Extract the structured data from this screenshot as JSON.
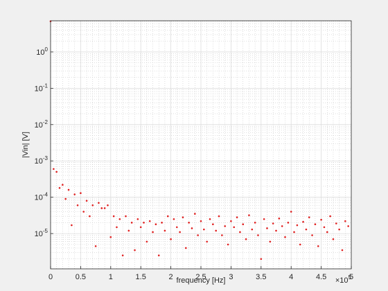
{
  "chart_data": {
    "type": "scatter",
    "xlabel": "frequency [Hz]",
    "ylabel": "|Vin|  [V]",
    "x_exponent_label": "×10^5",
    "color": "#e02020",
    "log_y": true,
    "grid": true,
    "minor_grid": true,
    "xlim": [
      0,
      500000
    ],
    "ylim": [
      1.07e-06,
      7.2
    ],
    "xticks": [
      0,
      {
        "value": 50000,
        "label": "0.5"
      },
      {
        "value": 100000,
        "label": "1"
      },
      {
        "value": 150000,
        "label": "1.5"
      },
      {
        "value": 200000,
        "label": "2"
      },
      {
        "value": 250000,
        "label": "2.5"
      },
      {
        "value": 300000,
        "label": "3"
      },
      {
        "value": 350000,
        "label": "3.5"
      },
      {
        "value": 400000,
        "label": "4"
      },
      {
        "value": 450000,
        "label": "4.5"
      },
      {
        "value": 500000,
        "label": "5"
      }
    ],
    "yticks": [
      {
        "value": 1e-05,
        "label": "10^-5"
      },
      {
        "value": 0.0001,
        "label": "10^-4"
      },
      {
        "value": 0.001,
        "label": "10^-3"
      },
      {
        "value": 0.01,
        "label": "10^-2"
      },
      {
        "value": 0.1,
        "label": "10^-1"
      },
      {
        "value": 1,
        "label": "10^0"
      }
    ],
    "x": [
      0,
      5000,
      10000,
      15000,
      20000,
      25000,
      30000,
      35000,
      40000,
      45000,
      50000,
      55000,
      60000,
      65000,
      70000,
      75000,
      80000,
      85000,
      90000,
      95000,
      100000,
      105000,
      110000,
      115000,
      120000,
      125000,
      130000,
      135000,
      140000,
      145000,
      150000,
      155000,
      160000,
      165000,
      170000,
      175000,
      180000,
      185000,
      190000,
      195000,
      200000,
      205000,
      210000,
      215000,
      220000,
      225000,
      230000,
      235000,
      240000,
      245000,
      250000,
      255000,
      260000,
      265000,
      270000,
      275000,
      280000,
      285000,
      290000,
      295000,
      300000,
      305000,
      310000,
      315000,
      320000,
      325000,
      330000,
      335000,
      340000,
      345000,
      350000,
      355000,
      360000,
      365000,
      370000,
      375000,
      380000,
      385000,
      390000,
      395000,
      400000,
      405000,
      410000,
      415000,
      420000,
      425000,
      430000,
      435000,
      440000,
      445000,
      450000,
      455000,
      460000,
      465000,
      470000,
      475000,
      480000,
      485000,
      490000,
      495000
    ],
    "values": [
      7,
      0.0006,
      0.0005,
      0.00018,
      0.00022,
      9e-05,
      0.00016,
      1.7e-05,
      0.00012,
      6e-05,
      0.00013,
      4e-05,
      8e-05,
      3e-05,
      6e-05,
      4.5e-06,
      7e-05,
      5e-05,
      5e-05,
      6e-05,
      8e-06,
      3e-05,
      1.5e-05,
      2.5e-05,
      2.5e-06,
      3e-05,
      1.2e-05,
      2e-05,
      3.5e-06,
      2.5e-05,
      1.5e-05,
      2e-05,
      6e-06,
      2.2e-05,
      1.1e-05,
      1.8e-05,
      2.5e-06,
      2e-05,
      1.2e-05,
      3e-05,
      7e-06,
      2.5e-05,
      1.5e-05,
      1.1e-05,
      2.8e-05,
      4e-06,
      2e-05,
      1.4e-05,
      3.5e-05,
      9e-06,
      2.2e-05,
      1.3e-05,
      6e-06,
      2.5e-05,
      1.8e-05,
      1.2e-05,
      3e-05,
      9e-06,
      1.6e-05,
      5e-06,
      2.2e-05,
      1.5e-05,
      2.8e-05,
      1.1e-05,
      1.8e-05,
      7e-06,
      3.2e-05,
      1.3e-05,
      2e-05,
      9e-06,
      2e-06,
      2.5e-05,
      1.4e-05,
      6e-06,
      1.9e-05,
      1.2e-05,
      2.6e-05,
      1.6e-05,
      8e-06,
      2e-05,
      4e-05,
      1.1e-05,
      1.7e-05,
      5e-06,
      2.1e-05,
      1.3e-05,
      2.8e-05,
      9e-06,
      1.8e-05,
      4.5e-06,
      2.4e-05,
      1.5e-05,
      1.1e-05,
      3e-05,
      7e-06,
      1.9e-05,
      1.3e-05,
      3.5e-06,
      2.2e-05,
      1.6e-05
    ]
  }
}
